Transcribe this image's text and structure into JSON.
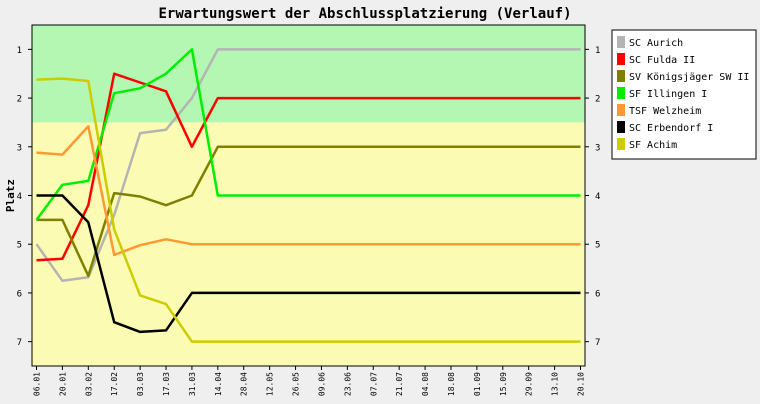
{
  "chart_data": {
    "type": "line",
    "title": "Erwartungswert der Abschlussplatzierung (Verlauf)",
    "ylabel": "Platz",
    "xlabel": "",
    "ylim": [
      0.5,
      7.5
    ],
    "y_inverted": true,
    "y_ticks": [
      1,
      2,
      3,
      4,
      5,
      6,
      7
    ],
    "grid": false,
    "legend_position": "right",
    "bands": [
      {
        "from": 0.5,
        "to": 2.5,
        "color": "#b3f7b3"
      },
      {
        "from": 2.5,
        "to": 7.5,
        "color": "#fbfbb3"
      }
    ],
    "categories": [
      "06.01",
      "20.01",
      "03.02",
      "17.02",
      "03.03",
      "17.03",
      "31.03",
      "14.04",
      "28.04",
      "12.05",
      "26.05",
      "09.06",
      "23.06",
      "07.07",
      "21.07",
      "04.08",
      "18.08",
      "01.09",
      "15.09",
      "29.09",
      "13.10",
      "20.10"
    ],
    "series": [
      {
        "name": "SC Aurich",
        "color": "#b4b4b4",
        "values": [
          5.0,
          5.75,
          5.68,
          4.4,
          2.72,
          2.65,
          2.0,
          1,
          1,
          1,
          1,
          1,
          1,
          1,
          1,
          1,
          1,
          1,
          1,
          1,
          1,
          1
        ]
      },
      {
        "name": "SC Fulda II",
        "color": "#ff0000",
        "values": [
          5.33,
          5.3,
          4.2,
          1.5,
          1.68,
          1.86,
          3.0,
          2,
          2,
          2,
          2,
          2,
          2,
          2,
          2,
          2,
          2,
          2,
          2,
          2,
          2,
          2
        ]
      },
      {
        "name": "SV Königsjäger SW II",
        "color": "#808000",
        "values": [
          4.5,
          4.5,
          5.65,
          3.95,
          4.02,
          4.2,
          4.0,
          3,
          3,
          3,
          3,
          3,
          3,
          3,
          3,
          3,
          3,
          3,
          3,
          3,
          3,
          3
        ]
      },
      {
        "name": "SF Illingen I",
        "color": "#00ee00",
        "values": [
          4.5,
          3.78,
          3.7,
          1.9,
          1.8,
          1.5,
          1.0,
          4,
          4,
          4,
          4,
          4,
          4,
          4,
          4,
          4,
          4,
          4,
          4,
          4,
          4,
          4
        ]
      },
      {
        "name": "TSF Welzheim",
        "color": "#ff9933",
        "values": [
          3.12,
          3.16,
          2.58,
          5.22,
          5.02,
          4.9,
          5.0,
          5,
          5,
          5,
          5,
          5,
          5,
          5,
          5,
          5,
          5,
          5,
          5,
          5,
          5,
          5
        ]
      },
      {
        "name": "SC Erbendorf I",
        "color": "#000000",
        "values": [
          4.0,
          4.0,
          4.55,
          6.6,
          6.8,
          6.77,
          6.0,
          6,
          6,
          6,
          6,
          6,
          6,
          6,
          6,
          6,
          6,
          6,
          6,
          6,
          6,
          6
        ]
      },
      {
        "name": "SF Achim",
        "color": "#cccc00",
        "values": [
          1.62,
          1.6,
          1.65,
          4.7,
          6.05,
          6.23,
          7.0,
          7,
          7,
          7,
          7,
          7,
          7,
          7,
          7,
          7,
          7,
          7,
          7,
          7,
          7,
          7
        ]
      }
    ]
  }
}
